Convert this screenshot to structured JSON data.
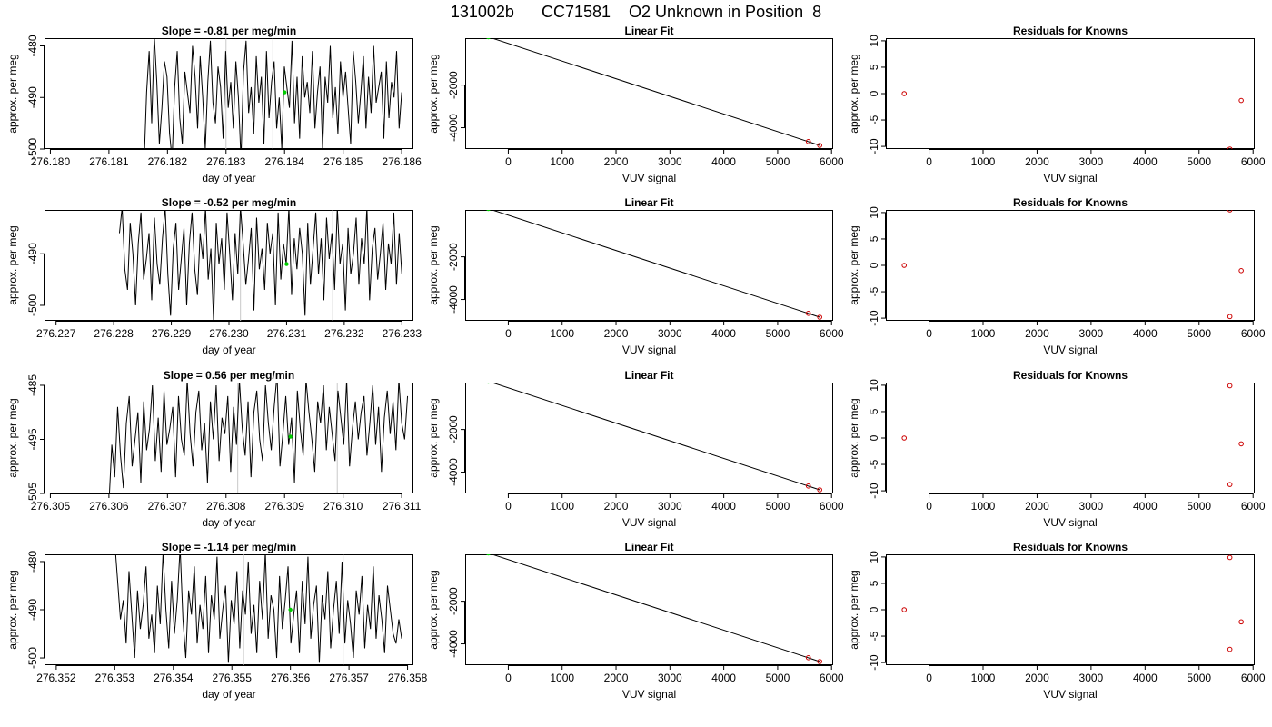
{
  "title": "131002b      CC71581    O2 Unknown in Position  8",
  "panel_titles": {
    "linear_fit": "Linear Fit",
    "residuals": "Residuals for Knowns"
  },
  "axis_labels": {
    "day_of_year": "day of year",
    "approx_per_meg": "approx. per meg",
    "vuv_signal": "VUV signal"
  },
  "colors": {
    "series_line": "#000000",
    "unknown_marker": "#00cc00",
    "known_marker": "#cc0000",
    "grid_line": "#c8c8c8"
  },
  "chart_data": [
    {
      "type": "line",
      "row": 1,
      "title": "Slope =  -0.81  per meg/min",
      "xlabel": "day of year",
      "ylabel": "approx. per meg",
      "xlim": [
        276.1799,
        276.1862
      ],
      "ylim": [
        -500,
        -478.5
      ],
      "xticks": [
        "276.180",
        "276.181",
        "276.182",
        "276.183",
        "276.184",
        "276.185",
        "276.186"
      ],
      "yticks": [
        "-480",
        "-490",
        "-500"
      ],
      "x_start": 276.1816,
      "x_end": 276.186,
      "mean": -489,
      "amplitude": 10,
      "trend": -0.81,
      "vlines": [
        276.183,
        276.1838
      ],
      "unknown_point": {
        "x": 276.184,
        "y": -489
      },
      "series": [
        {
          "values": [
            -503,
            -489,
            -481,
            -495,
            -478,
            -487,
            -499,
            -492,
            -483,
            -486,
            -497,
            -502,
            -488,
            -481,
            -494,
            -499,
            -485,
            -489,
            -493,
            -480,
            -486,
            -496,
            -482,
            -490,
            -500,
            -487,
            -479,
            -491,
            -495,
            -484,
            -488,
            -498,
            -481,
            -492,
            -487,
            -496,
            -483,
            -490,
            -502,
            -485,
            -479,
            -493,
            -488,
            -497,
            -482,
            -491,
            -486,
            -499,
            -481,
            -494,
            -487,
            -483,
            -496,
            -490,
            -500,
            -484,
            -488,
            -492,
            -479,
            -495,
            -486,
            -498,
            -482,
            -490,
            -487,
            -493,
            -481,
            -496,
            -489,
            -484,
            -500,
            -486,
            -491,
            -480,
            -494,
            -488,
            -497,
            -483,
            -490,
            -485,
            -492,
            -499,
            -481,
            -487,
            -495,
            -489,
            -482,
            -496,
            -486,
            -493,
            -480,
            -491,
            -488,
            -485,
            -498,
            -483,
            -494,
            -487,
            -490,
            -481,
            -496,
            -489
          ]
        }
      ]
    },
    {
      "type": "line",
      "row": 2,
      "title": "Slope =  -0.52  per meg/min",
      "xlabel": "day of year",
      "ylabel": "approx. per meg",
      "xlim": [
        276.2268,
        276.2332
      ],
      "ylim": [
        -503,
        -481.5
      ],
      "xticks": [
        "276.227",
        "276.228",
        "276.229",
        "276.230",
        "276.231",
        "276.232",
        "276.233"
      ],
      "yticks": [
        "-490",
        "-500"
      ],
      "x_start": 276.2281,
      "x_end": 276.233,
      "mean": -491.5,
      "amplitude": 10,
      "trend": -0.52,
      "vlines": [
        276.2302,
        276.2318
      ],
      "unknown_point": {
        "x": 276.231,
        "y": -492
      },
      "series": [
        {
          "values": [
            -486,
            -481,
            -493,
            -497,
            -484,
            -490,
            -500,
            -488,
            -482,
            -495,
            -491,
            -486,
            -499,
            -483,
            -492,
            -496,
            -487,
            -481,
            -494,
            -502,
            -489,
            -484,
            -497,
            -491,
            -485,
            -500,
            -488,
            -482,
            -493,
            -498,
            -486,
            -491,
            -481,
            -495,
            -489,
            -503,
            -484,
            -492,
            -487,
            -497,
            -482,
            -490,
            -499,
            -486,
            -494,
            -481,
            -488,
            -496,
            -491,
            -485,
            -501,
            -483,
            -493,
            -489,
            -497,
            -484,
            -490,
            -486,
            -500,
            -482,
            -495,
            -488,
            -492,
            -481,
            -498,
            -487,
            -493,
            -485,
            -490,
            -502,
            -484,
            -496,
            -489,
            -482,
            -494,
            -487,
            -499,
            -483,
            -491,
            -486,
            -497,
            -481,
            -492,
            -488,
            -501,
            -485,
            -494,
            -490,
            -483,
            -496,
            -487,
            -492,
            -481,
            -499,
            -489,
            -485,
            -495,
            -490,
            -484,
            -497,
            -488,
            -492,
            -482,
            -496,
            -486,
            -494
          ]
        }
      ]
    },
    {
      "type": "line",
      "row": 3,
      "title": "Slope =  0.56  per meg/min",
      "xlabel": "day of year",
      "ylabel": "approx. per meg",
      "xlim": [
        276.3049,
        276.3112
      ],
      "ylim": [
        -505,
        -484.5
      ],
      "xticks": [
        "276.305",
        "276.306",
        "276.307",
        "276.308",
        "276.309",
        "276.310",
        "276.311"
      ],
      "yticks": [
        "-485",
        "-495",
        "-505"
      ],
      "x_start": 276.306,
      "x_end": 276.3111,
      "mean": -494.5,
      "amplitude": 9,
      "trend": 0.56,
      "vlines": [
        276.3082,
        276.3099
      ],
      "unknown_point": {
        "x": 276.3091,
        "y": -494.5
      },
      "series": [
        {
          "values": [
            -507,
            -496,
            -502,
            -489,
            -498,
            -504,
            -492,
            -487,
            -500,
            -495,
            -490,
            -503,
            -488,
            -497,
            -493,
            -485,
            -499,
            -491,
            -501,
            -486,
            -496,
            -493,
            -489,
            -502,
            -487,
            -495,
            -498,
            -484,
            -494,
            -500,
            -490,
            -486,
            -497,
            -492,
            -503,
            -488,
            -495,
            -485,
            -499,
            -491,
            -494,
            -487,
            -501,
            -489,
            -496,
            -484,
            -493,
            -498,
            -488,
            -502,
            -490,
            -486,
            -495,
            -499,
            -485,
            -492,
            -497,
            -489,
            -483,
            -500,
            -494,
            -487,
            -496,
            -491,
            -503,
            -486,
            -493,
            -498,
            -484,
            -490,
            -495,
            -501,
            -488,
            -492,
            -485,
            -497,
            -489,
            -494,
            -499,
            -486,
            -491,
            -496,
            -484,
            -500,
            -493,
            -488,
            -495,
            -490,
            -487,
            -498,
            -492,
            -485,
            -496,
            -489,
            -501,
            -491,
            -486,
            -494,
            -488,
            -497,
            -484,
            -492,
            -495,
            -487
          ]
        }
      ]
    },
    {
      "type": "line",
      "row": 4,
      "title": "Slope =  -1.14  per meg/min",
      "xlabel": "day of year",
      "ylabel": "approx. per meg",
      "xlim": [
        276.3518,
        276.3581
      ],
      "ylim": [
        -501.5,
        -478.5
      ],
      "xticks": [
        "276.352",
        "276.353",
        "276.354",
        "276.355",
        "276.356",
        "276.357",
        "276.358"
      ],
      "yticks": [
        "-480",
        "-490",
        "-500"
      ],
      "x_start": 276.353,
      "x_end": 276.3579,
      "mean": -490,
      "amplitude": 10.5,
      "trend": -1.14,
      "vlines": [
        276.3552,
        276.3569
      ],
      "unknown_point": {
        "x": 276.356,
        "y": -490
      },
      "series": [
        {
          "values": [
            -476,
            -484,
            -492,
            -488,
            -497,
            -482,
            -491,
            -500,
            -486,
            -494,
            -489,
            -481,
            -496,
            -491,
            -499,
            -485,
            -493,
            -478,
            -490,
            -498,
            -484,
            -495,
            -488,
            -477,
            -492,
            -500,
            -486,
            -491,
            -481,
            -497,
            -489,
            -494,
            -483,
            -499,
            -487,
            -492,
            -479,
            -496,
            -490,
            -485,
            -501,
            -488,
            -493,
            -482,
            -498,
            -486,
            -491,
            -480,
            -495,
            -489,
            -499,
            -484,
            -492,
            -478,
            -496,
            -487,
            -490,
            -500,
            -483,
            -494,
            -488,
            -481,
            -497,
            -491,
            -486,
            -499,
            -484,
            -493,
            -479,
            -496,
            -489,
            -485,
            -501,
            -487,
            -492,
            -482,
            -498,
            -490,
            -484,
            -495,
            -480,
            -497,
            -488,
            -493,
            -500,
            -486,
            -491,
            -483,
            -498,
            -489,
            -494,
            -481,
            -496,
            -487,
            -492,
            -499,
            -485,
            -490,
            -495,
            -497,
            -492,
            -496
          ]
        }
      ]
    },
    {
      "type": "scatter",
      "row": 1,
      "title": "Linear Fit",
      "xlabel": "VUV signal",
      "ylabel": "approx. per meg",
      "xlim": [
        -800,
        6030
      ],
      "ylim": [
        -5000,
        200
      ],
      "xticks": [
        "0",
        "1000",
        "2000",
        "3000",
        "4000",
        "5000",
        "6000"
      ],
      "yticks": [
        "-2000",
        "-4000"
      ],
      "fit_line": {
        "x": [
          -480,
          5780
        ],
        "y": [
          350,
          -4830
        ]
      },
      "known_points": [
        {
          "x": -460,
          "y": 340
        },
        {
          "x": 5570,
          "y": -4650
        },
        {
          "x": 5780,
          "y": -4830
        }
      ],
      "unknown_point": {
        "x": -370,
        "y": 270
      }
    },
    {
      "type": "scatter",
      "row": 2,
      "title": "Linear Fit",
      "xlabel": "VUV signal",
      "ylabel": "approx. per meg",
      "xlim": [
        -800,
        6030
      ],
      "ylim": [
        -5000,
        200
      ],
      "xticks": [
        "0",
        "1000",
        "2000",
        "3000",
        "4000",
        "5000",
        "6000"
      ],
      "yticks": [
        "-2000",
        "-4000"
      ],
      "fit_line": {
        "x": [
          -480,
          5780
        ],
        "y": [
          350,
          -4830
        ]
      },
      "known_points": [
        {
          "x": -460,
          "y": 340
        },
        {
          "x": 5570,
          "y": -4650
        },
        {
          "x": 5780,
          "y": -4830
        }
      ],
      "unknown_point": {
        "x": -370,
        "y": 270
      }
    },
    {
      "type": "scatter",
      "row": 3,
      "title": "Linear Fit",
      "xlabel": "VUV signal",
      "ylabel": "approx. per meg",
      "xlim": [
        -800,
        6030
      ],
      "ylim": [
        -5000,
        200
      ],
      "xticks": [
        "0",
        "1000",
        "2000",
        "3000",
        "4000",
        "5000",
        "6000"
      ],
      "yticks": [
        "-2000",
        "-4000"
      ],
      "fit_line": {
        "x": [
          -480,
          5780
        ],
        "y": [
          350,
          -4830
        ]
      },
      "known_points": [
        {
          "x": -460,
          "y": 340
        },
        {
          "x": 5570,
          "y": -4650
        },
        {
          "x": 5780,
          "y": -4830
        }
      ],
      "unknown_point": {
        "x": -370,
        "y": 270
      }
    },
    {
      "type": "scatter",
      "row": 4,
      "title": "Linear Fit",
      "xlabel": "VUV signal",
      "ylabel": "approx. per meg",
      "xlim": [
        -800,
        6030
      ],
      "ylim": [
        -5000,
        200
      ],
      "xticks": [
        "0",
        "1000",
        "2000",
        "3000",
        "4000",
        "5000",
        "6000"
      ],
      "yticks": [
        "-2000",
        "-4000"
      ],
      "fit_line": {
        "x": [
          -480,
          5780
        ],
        "y": [
          350,
          -4830
        ]
      },
      "known_points": [
        {
          "x": -460,
          "y": 340
        },
        {
          "x": 5570,
          "y": -4650
        },
        {
          "x": 5780,
          "y": -4830
        }
      ],
      "unknown_point": {
        "x": -370,
        "y": 270
      }
    },
    {
      "type": "scatter",
      "row": 1,
      "title": "Residuals for Knowns",
      "xlabel": "VUV signal",
      "ylabel": "approx. per meg",
      "xlim": [
        -800,
        6030
      ],
      "ylim": [
        -10.5,
        10.5
      ],
      "xticks": [
        "0",
        "1000",
        "2000",
        "3000",
        "4000",
        "5000",
        "6000"
      ],
      "yticks": [
        "10",
        "5",
        "0",
        "-5",
        "-10"
      ],
      "points": [
        {
          "x": -460,
          "y": 0
        },
        {
          "x": 5780,
          "y": -1.3
        },
        {
          "x": 5570,
          "y": -10.5
        }
      ]
    },
    {
      "type": "scatter",
      "row": 2,
      "title": "Residuals for Knowns",
      "xlabel": "VUV signal",
      "ylabel": "approx. per meg",
      "xlim": [
        -800,
        6030
      ],
      "ylim": [
        -10.5,
        10.5
      ],
      "xticks": [
        "0",
        "1000",
        "2000",
        "3000",
        "4000",
        "5000",
        "6000"
      ],
      "yticks": [
        "10",
        "5",
        "0",
        "-5",
        "-10"
      ],
      "points": [
        {
          "x": -460,
          "y": 0
        },
        {
          "x": 5780,
          "y": -1
        },
        {
          "x": 5570,
          "y": -9.7
        },
        {
          "x": 5570,
          "y": 10.5
        }
      ]
    },
    {
      "type": "scatter",
      "row": 3,
      "title": "Residuals for Knowns",
      "xlabel": "VUV signal",
      "ylabel": "approx. per meg",
      "xlim": [
        -800,
        6030
      ],
      "ylim": [
        -10.5,
        10.5
      ],
      "xticks": [
        "0",
        "1000",
        "2000",
        "3000",
        "4000",
        "5000",
        "6000"
      ],
      "yticks": [
        "10",
        "5",
        "0",
        "-5",
        "-10"
      ],
      "points": [
        {
          "x": -460,
          "y": 0
        },
        {
          "x": 5570,
          "y": 9.9
        },
        {
          "x": 5780,
          "y": -1.1
        },
        {
          "x": 5570,
          "y": -8.8
        }
      ]
    },
    {
      "type": "scatter",
      "row": 4,
      "title": "Residuals for Knowns",
      "xlabel": "VUV signal",
      "ylabel": "approx. per meg",
      "xlim": [
        -800,
        6030
      ],
      "ylim": [
        -10.5,
        10.5
      ],
      "xticks": [
        "0",
        "1000",
        "2000",
        "3000",
        "4000",
        "5000",
        "6000"
      ],
      "yticks": [
        "10",
        "5",
        "0",
        "-5",
        "-10"
      ],
      "points": [
        {
          "x": -460,
          "y": 0
        },
        {
          "x": 5570,
          "y": 9.9
        },
        {
          "x": 5780,
          "y": -2.3
        },
        {
          "x": 5570,
          "y": -7.5
        }
      ]
    }
  ]
}
